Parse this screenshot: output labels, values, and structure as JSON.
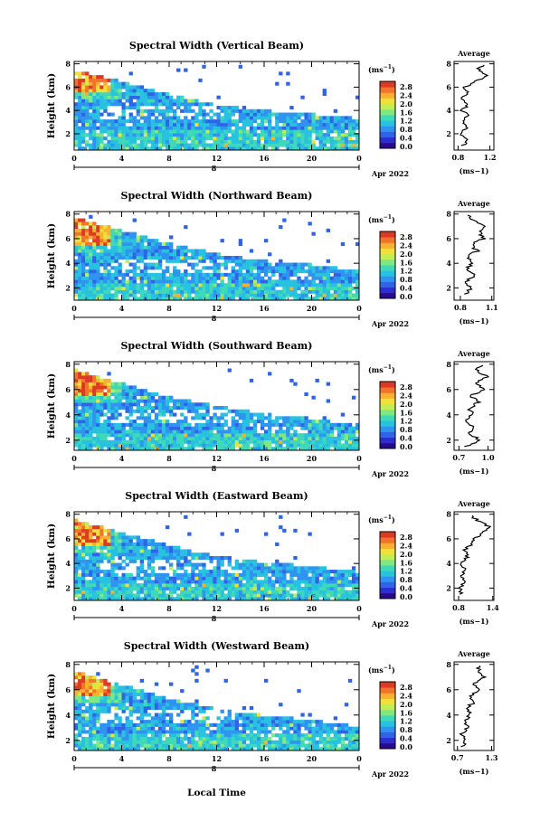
{
  "figure": {
    "local_time_label": "Local Time",
    "date_label": "Apr 2022",
    "date_day": "8",
    "colorbar_unit": "(ms",
    "colorbar_unit_exp": "−1",
    "colorbar_ticks": [
      "2.8",
      "2.4",
      "2.0",
      "1.6",
      "1.2",
      "0.8",
      "0.4",
      "0.0"
    ],
    "colormap": [
      "#2a0a8c",
      "#2c2fd0",
      "#2f63e8",
      "#2f94f0",
      "#27c2e0",
      "#3fd9b8",
      "#7fe882",
      "#c1ee54",
      "#eee23a",
      "#f8b12f",
      "#f2732a",
      "#dd3a26"
    ]
  },
  "chart_data": [
    {
      "type": "heatmap",
      "title": "Spectral Width (Vertical Beam)",
      "xlabel": "",
      "ylabel": "Height (km)",
      "x_ticks": [
        "0",
        "4",
        "8",
        "12",
        "16",
        "20",
        "0"
      ],
      "xlim": [
        0,
        24
      ],
      "y_ticks": [
        "2",
        "4",
        "6",
        "8"
      ],
      "ylim": [
        0.6,
        8.2
      ],
      "z_label": "(ms−1)",
      "zlim": [
        0.0,
        2.8
      ],
      "cloud_top_km": [
        7.2,
        6.2,
        5.1,
        4.2,
        3.7,
        3.4,
        3.0
      ],
      "average": {
        "title": "Average",
        "xlabel": "(ms−1)",
        "x_ticks": [
          "0.8",
          "1.2"
        ],
        "xlim": [
          0.75,
          1.25
        ],
        "y_ticks": [
          "2",
          "4",
          "6",
          "8"
        ],
        "height_km": [
          1.0,
          1.5,
          2.0,
          2.5,
          3.0,
          3.5,
          4.0,
          4.5,
          5.0,
          5.5,
          6.0,
          6.5,
          7.0,
          7.5,
          8.0
        ],
        "values": [
          0.87,
          0.92,
          0.82,
          0.9,
          0.86,
          0.92,
          0.85,
          0.94,
          0.84,
          0.92,
          0.88,
          1.02,
          1.18,
          1.05,
          1.12
        ]
      }
    },
    {
      "type": "heatmap",
      "title": "Spectral Width (Northward Beam)",
      "xlabel": "",
      "ylabel": "Height (km)",
      "x_ticks": [
        "0",
        "4",
        "8",
        "12",
        "16",
        "20",
        "0"
      ],
      "xlim": [
        0,
        24
      ],
      "y_ticks": [
        "2",
        "4",
        "6",
        "8"
      ],
      "ylim": [
        1.0,
        8.2
      ],
      "z_label": "(ms−1)",
      "zlim": [
        0.0,
        2.8
      ],
      "cloud_top_km": [
        7.4,
        6.4,
        5.3,
        4.5,
        3.9,
        3.6,
        3.1
      ],
      "average": {
        "title": "Average",
        "xlabel": "(ms−1)",
        "x_ticks": [
          "0.8",
          "1.1"
        ],
        "xlim": [
          0.74,
          1.12
        ],
        "y_ticks": [
          "2",
          "4",
          "6",
          "8"
        ],
        "height_km": [
          1.5,
          2.0,
          2.5,
          3.0,
          3.5,
          4.0,
          4.5,
          5.0,
          5.5,
          6.0,
          6.5,
          7.0,
          7.5,
          8.0
        ],
        "values": [
          0.86,
          0.9,
          0.84,
          0.95,
          0.85,
          0.92,
          0.86,
          0.96,
          0.9,
          1.02,
          0.98,
          1.04,
          0.92,
          0.88
        ]
      }
    },
    {
      "type": "heatmap",
      "title": "Spectral Width (Southward Beam)",
      "xlabel": "",
      "ylabel": "Height (km)",
      "x_ticks": [
        "0",
        "4",
        "8",
        "12",
        "16",
        "20",
        "0"
      ],
      "xlim": [
        0,
        24
      ],
      "y_ticks": [
        "2",
        "4",
        "6",
        "8"
      ],
      "ylim": [
        1.2,
        8.2
      ],
      "z_label": "(ms−1)",
      "zlim": [
        0.0,
        2.8
      ],
      "cloud_top_km": [
        7.3,
        6.2,
        5.1,
        4.4,
        3.8,
        3.4,
        2.9
      ],
      "average": {
        "title": "Average",
        "xlabel": "(ms−1)",
        "x_ticks": [
          "0.7",
          "1.0"
        ],
        "xlim": [
          0.65,
          1.06
        ],
        "y_ticks": [
          "2",
          "4",
          "6",
          "8"
        ],
        "height_km": [
          1.5,
          2.0,
          2.5,
          3.0,
          3.5,
          4.0,
          4.5,
          5.0,
          5.5,
          6.0,
          6.5,
          7.0,
          7.5,
          8.0
        ],
        "values": [
          0.78,
          0.92,
          0.8,
          0.86,
          0.76,
          0.84,
          0.8,
          0.9,
          0.82,
          0.96,
          0.86,
          1.0,
          0.88,
          0.94
        ]
      }
    },
    {
      "type": "heatmap",
      "title": "Spectral Width (Eastward Beam)",
      "xlabel": "",
      "ylabel": "Height (km)",
      "x_ticks": [
        "0",
        "4",
        "8",
        "12",
        "16",
        "20",
        "0"
      ],
      "xlim": [
        0,
        24
      ],
      "y_ticks": [
        "2",
        "4",
        "6",
        "8"
      ],
      "ylim": [
        1.0,
        8.2
      ],
      "z_label": "(ms−1)",
      "zlim": [
        0.0,
        2.8
      ],
      "cloud_top_km": [
        7.3,
        6.2,
        5.2,
        4.3,
        3.8,
        3.5,
        3.0
      ],
      "average": {
        "title": "Average",
        "xlabel": "(ms−1)",
        "x_ticks": [
          "0.8",
          "1.4"
        ],
        "xlim": [
          0.72,
          1.42
        ],
        "y_ticks": [
          "2",
          "4",
          "6",
          "8"
        ],
        "height_km": [
          1.5,
          2.0,
          2.5,
          3.0,
          3.5,
          4.0,
          4.5,
          5.0,
          5.5,
          6.0,
          6.5,
          7.0,
          7.5,
          8.0
        ],
        "values": [
          0.86,
          0.82,
          0.92,
          0.84,
          0.9,
          0.86,
          0.96,
          0.9,
          1.0,
          1.08,
          1.22,
          1.34,
          1.12,
          1.0
        ]
      }
    },
    {
      "type": "heatmap",
      "title": "Spectral Width (Westward Beam)",
      "xlabel": "Local Time",
      "ylabel": "Height (km)",
      "x_ticks": [
        "0",
        "4",
        "8",
        "12",
        "16",
        "20",
        "0"
      ],
      "xlim": [
        0,
        24
      ],
      "y_ticks": [
        "2",
        "4",
        "6",
        "8"
      ],
      "ylim": [
        1.2,
        8.2
      ],
      "z_label": "(ms−1)",
      "zlim": [
        0.0,
        2.8
      ],
      "cloud_top_km": [
        7.2,
        6.1,
        5.0,
        4.2,
        3.7,
        3.3,
        2.8
      ],
      "average": {
        "title": "Average",
        "xlabel": "(ms−1)",
        "x_ticks": [
          "0.7",
          "1.3"
        ],
        "xlim": [
          0.64,
          1.34
        ],
        "y_ticks": [
          "2",
          "4",
          "6",
          "8"
        ],
        "height_km": [
          1.5,
          2.0,
          2.5,
          3.0,
          3.5,
          4.0,
          4.5,
          5.0,
          5.5,
          6.0,
          6.5,
          7.0,
          7.5,
          8.0
        ],
        "values": [
          0.8,
          0.84,
          0.76,
          0.88,
          0.82,
          0.92,
          0.86,
          0.98,
          0.92,
          1.06,
          1.0,
          1.16,
          1.06,
          1.1
        ]
      }
    }
  ]
}
